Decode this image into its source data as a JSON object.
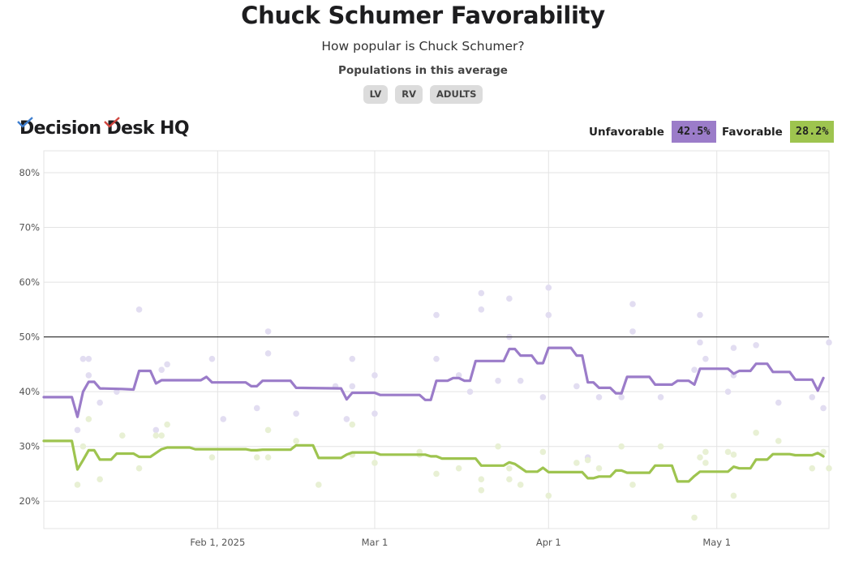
{
  "header": {
    "title": "Chuck Schumer Favorability",
    "subtitle": "How popular is Chuck Schumer?",
    "populations_label": "Populations in this average",
    "populations": [
      "LV",
      "RV",
      "ADULTS"
    ]
  },
  "brand": {
    "logo_text_1": "Decision",
    "logo_text_2": "Desk HQ"
  },
  "legend": {
    "unfavorable_label": "Unfavorable",
    "unfavorable_value": "42.5%",
    "favorable_label": "Favorable",
    "favorable_value": "28.2%"
  },
  "colors": {
    "unfavorable": "#9b7cc9",
    "favorable": "#9ec44f",
    "unfavorable_dot": "#e2ddf1",
    "favorable_dot": "#e8f0d4",
    "grid": "#e3e3e3",
    "reference_line": "#111111"
  },
  "chart_data": {
    "type": "line",
    "title": "Chuck Schumer Favorability",
    "x_domain": [
      "2025-01-01",
      "2025-05-21"
    ],
    "ylim": [
      15,
      84
    ],
    "y_ticks": [
      20,
      30,
      40,
      50,
      60,
      70,
      80
    ],
    "y_tick_labels": [
      "20%",
      "30%",
      "40%",
      "50%",
      "60%",
      "70%",
      "80%"
    ],
    "x_ticks": [
      "2025-02-01",
      "2025-03-01",
      "2025-04-01",
      "2025-05-01"
    ],
    "x_tick_labels": [
      "Feb 1, 2025",
      "Mar 1",
      "Apr 1",
      "May 1"
    ],
    "reference_line": 50,
    "series": [
      {
        "name": "Unfavorable",
        "points": [
          [
            "2025-01-01",
            39
          ],
          [
            "2025-01-06",
            39
          ],
          [
            "2025-01-07",
            35.4
          ],
          [
            "2025-01-08",
            40
          ],
          [
            "2025-01-09",
            41.8
          ],
          [
            "2025-01-10",
            41.8
          ],
          [
            "2025-01-11",
            40.6
          ],
          [
            "2025-01-15",
            40.5
          ],
          [
            "2025-01-17",
            40.4
          ],
          [
            "2025-01-18",
            43.8
          ],
          [
            "2025-01-20",
            43.8
          ],
          [
            "2025-01-21",
            41.5
          ],
          [
            "2025-01-22",
            42.1
          ],
          [
            "2025-01-29",
            42.1
          ],
          [
            "2025-01-30",
            42.7
          ],
          [
            "2025-01-31",
            41.7
          ],
          [
            "2025-02-06",
            41.7
          ],
          [
            "2025-02-07",
            41
          ],
          [
            "2025-02-08",
            41
          ],
          [
            "2025-02-09",
            42
          ],
          [
            "2025-02-14",
            42
          ],
          [
            "2025-02-15",
            40.7
          ],
          [
            "2025-02-23",
            40.6
          ],
          [
            "2025-02-24",
            38.6
          ],
          [
            "2025-02-25",
            39.8
          ],
          [
            "2025-03-01",
            39.8
          ],
          [
            "2025-03-02",
            39.4
          ],
          [
            "2025-03-09",
            39.4
          ],
          [
            "2025-03-10",
            38.5
          ],
          [
            "2025-03-11",
            38.5
          ],
          [
            "2025-03-12",
            42
          ],
          [
            "2025-03-14",
            42
          ],
          [
            "2025-03-15",
            42.5
          ],
          [
            "2025-03-16",
            42.5
          ],
          [
            "2025-03-17",
            42
          ],
          [
            "2025-03-18",
            42
          ],
          [
            "2025-03-19",
            45.6
          ],
          [
            "2025-03-24",
            45.6
          ],
          [
            "2025-03-25",
            47.8
          ],
          [
            "2025-03-26",
            47.8
          ],
          [
            "2025-03-27",
            46.6
          ],
          [
            "2025-03-29",
            46.6
          ],
          [
            "2025-03-30",
            45.2
          ],
          [
            "2025-03-31",
            45.2
          ],
          [
            "2025-04-01",
            48
          ],
          [
            "2025-04-05",
            48
          ],
          [
            "2025-04-06",
            46.6
          ],
          [
            "2025-04-07",
            46.6
          ],
          [
            "2025-04-08",
            41.7
          ],
          [
            "2025-04-09",
            41.7
          ],
          [
            "2025-04-10",
            40.7
          ],
          [
            "2025-04-12",
            40.7
          ],
          [
            "2025-04-13",
            39.7
          ],
          [
            "2025-04-14",
            39.7
          ],
          [
            "2025-04-15",
            42.7
          ],
          [
            "2025-04-19",
            42.7
          ],
          [
            "2025-04-20",
            41.3
          ],
          [
            "2025-04-23",
            41.3
          ],
          [
            "2025-04-24",
            42
          ],
          [
            "2025-04-26",
            42
          ],
          [
            "2025-04-27",
            41.3
          ],
          [
            "2025-04-28",
            44.2
          ],
          [
            "2025-05-03",
            44.2
          ],
          [
            "2025-05-04",
            43.3
          ],
          [
            "2025-05-05",
            43.8
          ],
          [
            "2025-05-07",
            43.8
          ],
          [
            "2025-05-08",
            45.1
          ],
          [
            "2025-05-10",
            45.1
          ],
          [
            "2025-05-11",
            43.6
          ],
          [
            "2025-05-14",
            43.6
          ],
          [
            "2025-05-15",
            42.2
          ],
          [
            "2025-05-18",
            42.2
          ],
          [
            "2025-05-19",
            40.2
          ],
          [
            "2025-05-20",
            42.5
          ]
        ],
        "polls": [
          [
            "2025-01-07",
            33
          ],
          [
            "2025-01-08",
            46
          ],
          [
            "2025-01-09",
            43
          ],
          [
            "2025-01-09",
            46
          ],
          [
            "2025-01-11",
            38
          ],
          [
            "2025-01-14",
            40
          ],
          [
            "2025-01-18",
            55
          ],
          [
            "2025-01-21",
            33
          ],
          [
            "2025-01-22",
            44
          ],
          [
            "2025-01-23",
            45
          ],
          [
            "2025-01-31",
            46
          ],
          [
            "2025-02-02",
            35
          ],
          [
            "2025-02-08",
            37
          ],
          [
            "2025-02-10",
            47
          ],
          [
            "2025-02-10",
            51
          ],
          [
            "2025-02-15",
            36
          ],
          [
            "2025-02-22",
            41
          ],
          [
            "2025-02-24",
            35
          ],
          [
            "2025-02-25",
            46
          ],
          [
            "2025-02-25",
            41
          ],
          [
            "2025-03-01",
            36
          ],
          [
            "2025-03-01",
            43
          ],
          [
            "2025-03-12",
            46
          ],
          [
            "2025-03-12",
            54
          ],
          [
            "2025-03-16",
            43
          ],
          [
            "2025-03-18",
            40
          ],
          [
            "2025-03-20",
            58
          ],
          [
            "2025-03-20",
            55
          ],
          [
            "2025-03-23",
            42
          ],
          [
            "2025-03-25",
            50
          ],
          [
            "2025-03-25",
            57
          ],
          [
            "2025-03-27",
            42
          ],
          [
            "2025-03-31",
            39
          ],
          [
            "2025-04-01",
            59
          ],
          [
            "2025-04-01",
            54
          ],
          [
            "2025-04-06",
            41
          ],
          [
            "2025-04-08",
            28
          ],
          [
            "2025-04-10",
            39
          ],
          [
            "2025-04-14",
            39
          ],
          [
            "2025-04-16",
            56
          ],
          [
            "2025-04-16",
            51
          ],
          [
            "2025-04-21",
            39
          ],
          [
            "2025-04-27",
            44
          ],
          [
            "2025-04-28",
            54
          ],
          [
            "2025-04-28",
            49
          ],
          [
            "2025-04-29",
            46
          ],
          [
            "2025-05-03",
            40
          ],
          [
            "2025-05-04",
            48
          ],
          [
            "2025-05-04",
            43
          ],
          [
            "2025-05-08",
            48.5
          ],
          [
            "2025-05-12",
            38
          ],
          [
            "2025-05-18",
            39
          ],
          [
            "2025-05-20",
            37
          ],
          [
            "2025-05-21",
            49
          ]
        ]
      },
      {
        "name": "Favorable",
        "points": [
          [
            "2025-01-01",
            31
          ],
          [
            "2025-01-06",
            31
          ],
          [
            "2025-01-07",
            25.8
          ],
          [
            "2025-01-08",
            27.5
          ],
          [
            "2025-01-09",
            29.3
          ],
          [
            "2025-01-10",
            29.3
          ],
          [
            "2025-01-11",
            27.6
          ],
          [
            "2025-01-13",
            27.6
          ],
          [
            "2025-01-14",
            28.7
          ],
          [
            "2025-01-17",
            28.7
          ],
          [
            "2025-01-18",
            28.1
          ],
          [
            "2025-01-20",
            28.1
          ],
          [
            "2025-01-22",
            29.5
          ],
          [
            "2025-01-23",
            29.8
          ],
          [
            "2025-01-27",
            29.8
          ],
          [
            "2025-01-28",
            29.5
          ],
          [
            "2025-02-06",
            29.5
          ],
          [
            "2025-02-07",
            29.3
          ],
          [
            "2025-02-08",
            29.3
          ],
          [
            "2025-02-09",
            29.4
          ],
          [
            "2025-02-14",
            29.4
          ],
          [
            "2025-02-15",
            30.2
          ],
          [
            "2025-02-18",
            30.2
          ],
          [
            "2025-02-19",
            27.9
          ],
          [
            "2025-02-23",
            27.9
          ],
          [
            "2025-02-24",
            28.5
          ],
          [
            "2025-02-25",
            28.9
          ],
          [
            "2025-03-01",
            28.9
          ],
          [
            "2025-03-02",
            28.5
          ],
          [
            "2025-03-10",
            28.5
          ],
          [
            "2025-03-11",
            28.2
          ],
          [
            "2025-03-12",
            28.2
          ],
          [
            "2025-03-13",
            27.8
          ],
          [
            "2025-03-19",
            27.8
          ],
          [
            "2025-03-20",
            26.5
          ],
          [
            "2025-03-24",
            26.5
          ],
          [
            "2025-03-25",
            27.1
          ],
          [
            "2025-03-26",
            26.8
          ],
          [
            "2025-03-27",
            26.1
          ],
          [
            "2025-03-28",
            25.4
          ],
          [
            "2025-03-30",
            25.4
          ],
          [
            "2025-03-31",
            26.1
          ],
          [
            "2025-04-01",
            25.3
          ],
          [
            "2025-04-07",
            25.3
          ],
          [
            "2025-04-08",
            24.2
          ],
          [
            "2025-04-09",
            24.2
          ],
          [
            "2025-04-10",
            24.5
          ],
          [
            "2025-04-12",
            24.5
          ],
          [
            "2025-04-13",
            25.6
          ],
          [
            "2025-04-14",
            25.6
          ],
          [
            "2025-04-15",
            25.2
          ],
          [
            "2025-04-19",
            25.2
          ],
          [
            "2025-04-20",
            26.5
          ],
          [
            "2025-04-23",
            26.5
          ],
          [
            "2025-04-24",
            23.6
          ],
          [
            "2025-04-26",
            23.6
          ],
          [
            "2025-04-27",
            24.6
          ],
          [
            "2025-04-28",
            25.4
          ],
          [
            "2025-05-03",
            25.4
          ],
          [
            "2025-05-04",
            26.3
          ],
          [
            "2025-05-05",
            26
          ],
          [
            "2025-05-07",
            26
          ],
          [
            "2025-05-08",
            27.6
          ],
          [
            "2025-05-10",
            27.6
          ],
          [
            "2025-05-11",
            28.6
          ],
          [
            "2025-05-14",
            28.6
          ],
          [
            "2025-05-15",
            28.4
          ],
          [
            "2025-05-18",
            28.4
          ],
          [
            "2025-05-19",
            28.8
          ],
          [
            "2025-05-20",
            28.2
          ]
        ],
        "polls": [
          [
            "2025-01-07",
            23
          ],
          [
            "2025-01-08",
            30
          ],
          [
            "2025-01-09",
            35
          ],
          [
            "2025-01-11",
            24
          ],
          [
            "2025-01-15",
            32
          ],
          [
            "2025-01-18",
            26
          ],
          [
            "2025-01-21",
            32
          ],
          [
            "2025-01-22",
            32
          ],
          [
            "2025-01-23",
            34
          ],
          [
            "2025-01-31",
            28
          ],
          [
            "2025-02-08",
            28
          ],
          [
            "2025-02-10",
            28
          ],
          [
            "2025-02-10",
            33
          ],
          [
            "2025-02-15",
            31
          ],
          [
            "2025-02-19",
            23
          ],
          [
            "2025-02-25",
            34
          ],
          [
            "2025-02-25",
            28.5
          ],
          [
            "2025-03-01",
            27
          ],
          [
            "2025-03-09",
            28.5
          ],
          [
            "2025-03-09",
            29
          ],
          [
            "2025-03-12",
            25
          ],
          [
            "2025-03-16",
            26
          ],
          [
            "2025-03-20",
            22
          ],
          [
            "2025-03-20",
            24
          ],
          [
            "2025-03-23",
            30
          ],
          [
            "2025-03-25",
            24
          ],
          [
            "2025-03-25",
            26
          ],
          [
            "2025-03-27",
            23
          ],
          [
            "2025-03-31",
            29
          ],
          [
            "2025-04-01",
            21
          ],
          [
            "2025-04-06",
            27
          ],
          [
            "2025-04-08",
            27.5
          ],
          [
            "2025-04-10",
            26
          ],
          [
            "2025-04-14",
            30
          ],
          [
            "2025-04-16",
            23
          ],
          [
            "2025-04-21",
            30
          ],
          [
            "2025-04-27",
            17
          ],
          [
            "2025-04-28",
            28
          ],
          [
            "2025-04-29",
            29
          ],
          [
            "2025-04-29",
            27
          ],
          [
            "2025-05-03",
            29
          ],
          [
            "2025-05-04",
            21
          ],
          [
            "2025-05-04",
            28.5
          ],
          [
            "2025-05-08",
            32.5
          ],
          [
            "2025-05-12",
            31
          ],
          [
            "2025-05-18",
            26
          ],
          [
            "2025-05-20",
            29
          ],
          [
            "2025-05-21",
            26
          ]
        ]
      }
    ]
  }
}
